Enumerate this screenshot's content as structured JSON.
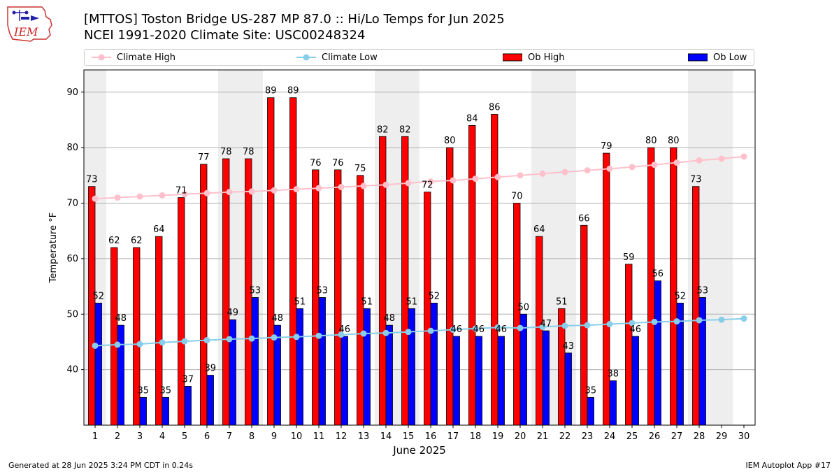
{
  "header": {
    "title_line1": "[MTTOS] Toston Bridge US-287 MP 87.0  :: Hi/Lo Temps for Jun 2025",
    "title_line2": "NCEI 1991-2020 Climate Site: USC00248324",
    "logo_text": "IEM"
  },
  "legend": {
    "climate_high": "Climate High",
    "climate_low": "Climate Low",
    "ob_high": "Ob High",
    "ob_low": "Ob Low"
  },
  "footer": {
    "left": "Generated at 28 Jun 2025 3:24 PM CDT in 0.24s",
    "right": "IEM Autoplot App #17"
  },
  "colors": {
    "ob_high": "#ff0000",
    "ob_low": "#0000ff",
    "climate_high": "#ffc0cb",
    "climate_low": "#87ceeb",
    "weekend_band": "#eeeeee",
    "grid": "#b0b0b0"
  },
  "chart_data": {
    "type": "bar",
    "xlabel": "June 2025",
    "ylabel": "Temperature °F",
    "ylim": [
      30,
      94
    ],
    "yticks": [
      40,
      50,
      60,
      70,
      80,
      90
    ],
    "grid": "horizontal",
    "legend_position": "top",
    "categories": [
      "1",
      "2",
      "3",
      "4",
      "5",
      "6",
      "7",
      "8",
      "9",
      "10",
      "11",
      "12",
      "13",
      "14",
      "15",
      "16",
      "17",
      "18",
      "19",
      "20",
      "21",
      "22",
      "23",
      "24",
      "25",
      "26",
      "27",
      "28",
      "29",
      "30"
    ],
    "weekend_days": [
      1,
      7,
      8,
      14,
      15,
      21,
      22,
      28,
      29
    ],
    "series": [
      {
        "name": "Ob High",
        "kind": "bar",
        "values": [
          73,
          62,
          62,
          64,
          71,
          77,
          78,
          78,
          89,
          89,
          76,
          76,
          75,
          82,
          82,
          72,
          80,
          84,
          86,
          70,
          64,
          51,
          66,
          79,
          59,
          80,
          80,
          73,
          null,
          null
        ]
      },
      {
        "name": "Ob Low",
        "kind": "bar",
        "values": [
          52,
          48,
          35,
          35,
          37,
          39,
          49,
          53,
          48,
          51,
          53,
          46,
          51,
          48,
          51,
          52,
          46,
          46,
          46,
          50,
          47,
          43,
          35,
          38,
          46,
          56,
          52,
          53,
          null,
          null
        ]
      },
      {
        "name": "Climate High",
        "kind": "line",
        "values": [
          70.8,
          71.0,
          71.2,
          71.4,
          71.6,
          71.8,
          72.0,
          72.1,
          72.3,
          72.5,
          72.7,
          72.9,
          73.1,
          73.3,
          73.6,
          73.9,
          74.1,
          74.4,
          74.7,
          75.0,
          75.3,
          75.6,
          75.9,
          76.2,
          76.5,
          76.9,
          77.3,
          77.7,
          78.0,
          78.4
        ]
      },
      {
        "name": "Climate Low",
        "kind": "line",
        "values": [
          44.3,
          44.5,
          44.6,
          44.9,
          45.1,
          45.3,
          45.5,
          45.6,
          45.8,
          45.9,
          46.1,
          46.3,
          46.5,
          46.6,
          46.8,
          47.0,
          47.2,
          47.4,
          47.6,
          47.5,
          47.7,
          47.9,
          48.0,
          48.2,
          48.4,
          48.6,
          48.7,
          48.9,
          49.0,
          49.2
        ]
      }
    ]
  }
}
